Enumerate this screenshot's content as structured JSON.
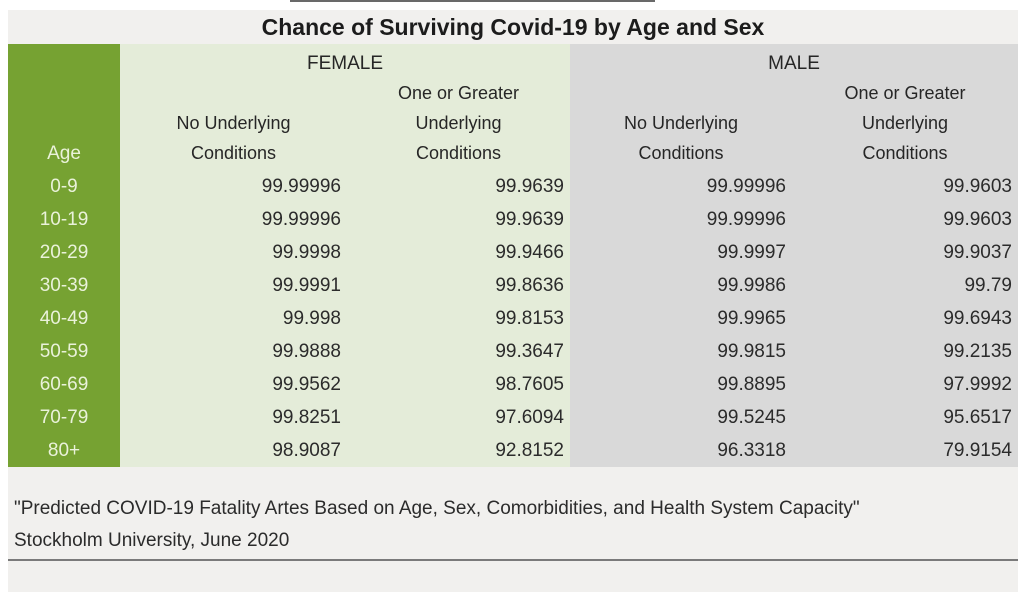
{
  "title": "Chance of Surviving Covid-19 by Age and Sex",
  "chart_data": {
    "type": "table",
    "title": "Chance of Surviving Covid-19 by Age and Sex",
    "age_column_header": "Age",
    "groups": [
      {
        "label": "FEMALE"
      },
      {
        "label": "MALE"
      }
    ],
    "sub_headers": {
      "no_cond": [
        "No Underlying",
        "Conditions"
      ],
      "one_plus": [
        "One or Greater",
        "Underlying",
        "Conditions"
      ]
    },
    "rows": [
      {
        "age": "0-9",
        "female_no_conditions": "99.99996",
        "female_one_plus": "99.9639",
        "male_no_conditions": "99.99996",
        "male_one_plus": "99.9603"
      },
      {
        "age": "10-19",
        "female_no_conditions": "99.99996",
        "female_one_plus": "99.9639",
        "male_no_conditions": "99.99996",
        "male_one_plus": "99.9603"
      },
      {
        "age": "20-29",
        "female_no_conditions": "99.9998",
        "female_one_plus": "99.9466",
        "male_no_conditions": "99.9997",
        "male_one_plus": "99.9037"
      },
      {
        "age": "30-39",
        "female_no_conditions": "99.9991",
        "female_one_plus": "99.8636",
        "male_no_conditions": "99.9986",
        "male_one_plus": "99.79"
      },
      {
        "age": "40-49",
        "female_no_conditions": "99.998",
        "female_one_plus": "99.8153",
        "male_no_conditions": "99.9965",
        "male_one_plus": "99.6943"
      },
      {
        "age": "50-59",
        "female_no_conditions": "99.9888",
        "female_one_plus": "99.3647",
        "male_no_conditions": "99.9815",
        "male_one_plus": "99.2135"
      },
      {
        "age": "60-69",
        "female_no_conditions": "99.9562",
        "female_one_plus": "98.7605",
        "male_no_conditions": "99.8895",
        "male_one_plus": "97.9992"
      },
      {
        "age": "70-79",
        "female_no_conditions": "99.8251",
        "female_one_plus": "97.6094",
        "male_no_conditions": "99.5245",
        "male_one_plus": "95.6517"
      },
      {
        "age": "80+",
        "female_no_conditions": "98.9087",
        "female_one_plus": "92.8152",
        "male_no_conditions": "96.3318",
        "male_one_plus": "79.9154"
      }
    ]
  },
  "footer": {
    "line1": "\"Predicted COVID-19 Fatality Artes Based on Age, Sex, Comorbidities, and Health System Capacity\"",
    "line2": "Stockholm University, June 2020"
  },
  "colors": {
    "accent_green": "#76a232",
    "female_bg": "#e4ecd9",
    "male_bg": "#d9d9d9",
    "band_bg": "#f1f0ee",
    "rule_color": "#7a7a7a"
  }
}
